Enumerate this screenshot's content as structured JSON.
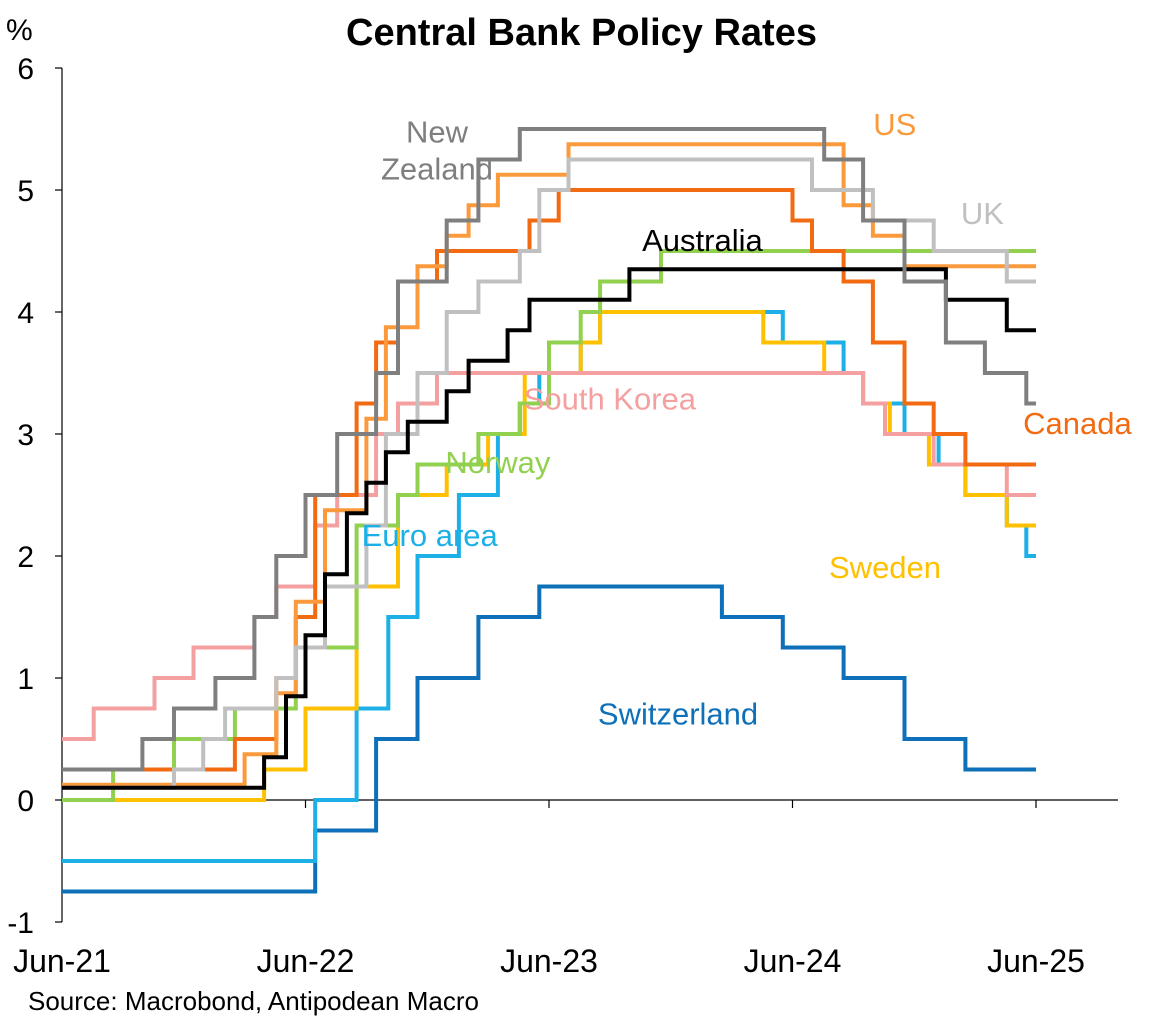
{
  "chart_data": {
    "type": "line",
    "step": true,
    "title": "Central Bank Policy Rates",
    "unit": "%",
    "source": "Source: Macrobond, Antipodean Macro",
    "x_ticks": [
      "Jun-21",
      "Jun-22",
      "Jun-23",
      "Jun-24",
      "Jun-25"
    ],
    "x_range": [
      "2021-06",
      "2025-06"
    ],
    "ylim": [
      -1,
      6
    ],
    "y_ticks": [
      "-1",
      "0",
      "1",
      "2",
      "3",
      "4",
      "5",
      "6"
    ],
    "grid": false,
    "legend": "inline labels",
    "series": [
      {
        "name": "Switzerland",
        "color": "#0e70b8",
        "label_pos": [
          2024.03,
          0.62
        ],
        "label_align": "middle",
        "points": [
          [
            2021.5,
            -0.75
          ],
          [
            2022.54,
            -0.25
          ],
          [
            2022.79,
            0.5
          ],
          [
            2022.96,
            1.0
          ],
          [
            2023.21,
            1.5
          ],
          [
            2023.46,
            1.75
          ],
          [
            2024.21,
            1.5
          ],
          [
            2024.46,
            1.25
          ],
          [
            2024.71,
            1.0
          ],
          [
            2024.96,
            0.5
          ],
          [
            2025.21,
            0.25
          ],
          [
            2025.5,
            0.25
          ]
        ]
      },
      {
        "name": "Euro area",
        "color": "#1cb0e6",
        "label_pos": [
          2023.01,
          2.08
        ],
        "label_align": "middle",
        "points": [
          [
            2021.5,
            -0.5
          ],
          [
            2022.54,
            0.0
          ],
          [
            2022.71,
            0.75
          ],
          [
            2022.84,
            1.5
          ],
          [
            2022.96,
            2.0
          ],
          [
            2023.13,
            2.5
          ],
          [
            2023.29,
            3.0
          ],
          [
            2023.38,
            3.25
          ],
          [
            2023.46,
            3.5
          ],
          [
            2023.63,
            3.75
          ],
          [
            2023.71,
            4.0
          ],
          [
            2024.46,
            3.75
          ],
          [
            2024.71,
            3.5
          ],
          [
            2024.79,
            3.25
          ],
          [
            2024.96,
            3.0
          ],
          [
            2025.1,
            2.75
          ],
          [
            2025.21,
            2.5
          ],
          [
            2025.38,
            2.25
          ],
          [
            2025.46,
            2.0
          ],
          [
            2025.5,
            2.0
          ]
        ]
      },
      {
        "name": "Sweden",
        "color": "#ffc000",
        "label_pos": [
          2024.88,
          1.82
        ],
        "label_align": "middle",
        "points": [
          [
            2021.5,
            0.0
          ],
          [
            2022.33,
            0.25
          ],
          [
            2022.5,
            0.75
          ],
          [
            2022.71,
            1.75
          ],
          [
            2022.88,
            2.5
          ],
          [
            2023.08,
            2.75
          ],
          [
            2023.25,
            3.0
          ],
          [
            2023.4,
            3.5
          ],
          [
            2023.63,
            3.75
          ],
          [
            2023.71,
            4.0
          ],
          [
            2024.38,
            3.75
          ],
          [
            2024.63,
            3.5
          ],
          [
            2024.79,
            3.25
          ],
          [
            2024.9,
            3.0
          ],
          [
            2025.06,
            2.75
          ],
          [
            2025.21,
            2.5
          ],
          [
            2025.38,
            2.25
          ],
          [
            2025.5,
            2.25
          ]
        ]
      },
      {
        "name": "Norway",
        "color": "#92d050",
        "label_pos": [
          2023.29,
          2.68
        ],
        "label_align": "middle",
        "points": [
          [
            2021.5,
            0.0
          ],
          [
            2021.71,
            0.25
          ],
          [
            2021.96,
            0.5
          ],
          [
            2022.21,
            0.75
          ],
          [
            2022.46,
            1.25
          ],
          [
            2022.71,
            2.25
          ],
          [
            2022.88,
            2.5
          ],
          [
            2022.96,
            2.75
          ],
          [
            2023.21,
            3.0
          ],
          [
            2023.38,
            3.25
          ],
          [
            2023.5,
            3.75
          ],
          [
            2023.63,
            4.0
          ],
          [
            2023.71,
            4.25
          ],
          [
            2023.96,
            4.5
          ],
          [
            2025.5,
            4.5
          ]
        ]
      },
      {
        "name": "South Korea",
        "color": "#f4a0a0",
        "label_pos": [
          2023.75,
          3.2
        ],
        "label_align": "middle",
        "points": [
          [
            2021.5,
            0.5
          ],
          [
            2021.63,
            0.75
          ],
          [
            2021.88,
            1.0
          ],
          [
            2022.04,
            1.25
          ],
          [
            2022.29,
            1.5
          ],
          [
            2022.38,
            1.75
          ],
          [
            2022.54,
            2.25
          ],
          [
            2022.63,
            2.5
          ],
          [
            2022.79,
            3.0
          ],
          [
            2022.88,
            3.25
          ],
          [
            2023.04,
            3.5
          ],
          [
            2024.79,
            3.25
          ],
          [
            2024.88,
            3.0
          ],
          [
            2025.08,
            2.75
          ],
          [
            2025.38,
            2.5
          ],
          [
            2025.5,
            2.5
          ]
        ]
      },
      {
        "name": "Canada",
        "color": "#f26b13",
        "label_pos": [
          2025.67,
          3.0
        ],
        "label_align": "middle",
        "points": [
          [
            2021.5,
            0.25
          ],
          [
            2022.21,
            0.5
          ],
          [
            2022.38,
            1.0
          ],
          [
            2022.46,
            1.5
          ],
          [
            2022.54,
            2.5
          ],
          [
            2022.71,
            3.25
          ],
          [
            2022.79,
            3.75
          ],
          [
            2022.88,
            4.25
          ],
          [
            2023.04,
            4.5
          ],
          [
            2023.42,
            4.75
          ],
          [
            2023.54,
            5.0
          ],
          [
            2024.5,
            4.75
          ],
          [
            2024.58,
            4.5
          ],
          [
            2024.71,
            4.25
          ],
          [
            2024.83,
            3.75
          ],
          [
            2024.96,
            3.25
          ],
          [
            2025.08,
            3.0
          ],
          [
            2025.21,
            2.75
          ],
          [
            2025.5,
            2.75
          ]
        ]
      },
      {
        "name": "US",
        "color": "#fb9a3c",
        "label_pos": [
          2024.92,
          5.45
        ],
        "label_align": "middle",
        "points": [
          [
            2021.5,
            0.125
          ],
          [
            2022.25,
            0.375
          ],
          [
            2022.38,
            0.875
          ],
          [
            2022.46,
            1.625
          ],
          [
            2022.58,
            2.375
          ],
          [
            2022.75,
            3.125
          ],
          [
            2022.83,
            3.875
          ],
          [
            2022.96,
            4.375
          ],
          [
            2023.08,
            4.625
          ],
          [
            2023.17,
            4.875
          ],
          [
            2023.29,
            5.125
          ],
          [
            2023.58,
            5.375
          ],
          [
            2024.71,
            4.875
          ],
          [
            2024.83,
            4.625
          ],
          [
            2024.96,
            4.375
          ],
          [
            2025.5,
            4.375
          ]
        ]
      },
      {
        "name": "UK",
        "color": "#c0c0c0",
        "label_pos": [
          2025.28,
          4.72
        ],
        "label_align": "middle",
        "points": [
          [
            2021.5,
            0.1
          ],
          [
            2021.96,
            0.25
          ],
          [
            2022.08,
            0.5
          ],
          [
            2022.17,
            0.75
          ],
          [
            2022.38,
            1.0
          ],
          [
            2022.46,
            1.25
          ],
          [
            2022.58,
            1.75
          ],
          [
            2022.75,
            2.25
          ],
          [
            2022.83,
            3.0
          ],
          [
            2022.96,
            3.5
          ],
          [
            2023.08,
            4.0
          ],
          [
            2023.21,
            4.25
          ],
          [
            2023.38,
            4.5
          ],
          [
            2023.46,
            5.0
          ],
          [
            2023.58,
            5.25
          ],
          [
            2024.58,
            5.0
          ],
          [
            2024.83,
            4.75
          ],
          [
            2025.08,
            4.5
          ],
          [
            2025.38,
            4.25
          ],
          [
            2025.5,
            4.25
          ]
        ]
      },
      {
        "name": "Australia",
        "color": "#000000",
        "label_pos": [
          2024.13,
          4.5
        ],
        "label_align": "middle",
        "points": [
          [
            2021.5,
            0.1
          ],
          [
            2022.33,
            0.35
          ],
          [
            2022.42,
            0.85
          ],
          [
            2022.5,
            1.35
          ],
          [
            2022.58,
            1.85
          ],
          [
            2022.67,
            2.35
          ],
          [
            2022.75,
            2.6
          ],
          [
            2022.83,
            2.85
          ],
          [
            2022.92,
            3.1
          ],
          [
            2023.08,
            3.35
          ],
          [
            2023.17,
            3.6
          ],
          [
            2023.33,
            3.85
          ],
          [
            2023.42,
            4.1
          ],
          [
            2023.83,
            4.35
          ],
          [
            2025.13,
            4.1
          ],
          [
            2025.38,
            3.85
          ],
          [
            2025.5,
            3.85
          ]
        ]
      },
      {
        "name": "New Zealand",
        "color": "#7f7f7f",
        "label_pos": [
          2023.04,
          5.39
        ],
        "label_align": "middle",
        "label_lines": [
          "New",
          "Zealand"
        ],
        "points": [
          [
            2021.5,
            0.25
          ],
          [
            2021.83,
            0.5
          ],
          [
            2021.96,
            0.75
          ],
          [
            2022.13,
            1.0
          ],
          [
            2022.29,
            1.5
          ],
          [
            2022.38,
            2.0
          ],
          [
            2022.5,
            2.5
          ],
          [
            2022.63,
            3.0
          ],
          [
            2022.79,
            3.5
          ],
          [
            2022.88,
            4.25
          ],
          [
            2023.08,
            4.75
          ],
          [
            2023.21,
            5.25
          ],
          [
            2023.38,
            5.5
          ],
          [
            2024.63,
            5.25
          ],
          [
            2024.79,
            4.75
          ],
          [
            2024.96,
            4.25
          ],
          [
            2025.13,
            3.75
          ],
          [
            2025.29,
            3.5
          ],
          [
            2025.46,
            3.25
          ],
          [
            2025.5,
            3.25
          ]
        ]
      }
    ]
  }
}
